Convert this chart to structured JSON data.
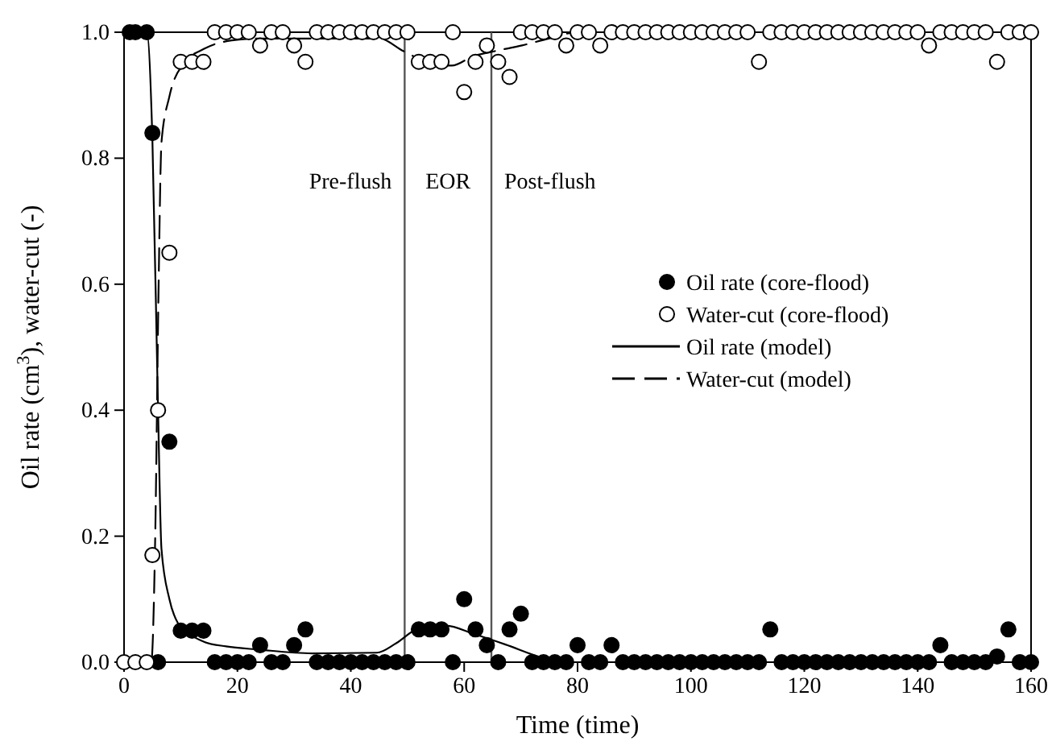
{
  "chart_data": {
    "type": "scatter",
    "xlabel": "Time (time)",
    "ylabel": "Oil rate (cm$^{3}$), water-cut (-)",
    "xlim": [
      0,
      160
    ],
    "xticks": [
      0,
      20,
      40,
      60,
      80,
      100,
      120,
      140,
      160
    ],
    "ylim": [
      0,
      1
    ],
    "yticks": [
      {
        "value": 0,
        "label": "0.0"
      },
      {
        "value": 0.2,
        "label": "0.2"
      },
      {
        "value": 0.4,
        "label": "0.4"
      },
      {
        "value": 0.6,
        "label": "0.6"
      },
      {
        "value": 0.8,
        "label": "0.8"
      },
      {
        "value": 1,
        "label": "1.0"
      }
    ],
    "grid": false,
    "legend": "right",
    "ref_lines": [
      {
        "axis": "x",
        "value": 49.5,
        "color": "#555555"
      },
      {
        "axis": "x",
        "value": 64.8,
        "color": "#555555"
      }
    ],
    "annotations": [
      "Pre-flush",
      "EOR",
      "Post-flush"
    ],
    "series": [
      {
        "name": "Oil rate (core-flood)",
        "marker": "circle",
        "color": "#000000",
        "x": [
          1,
          2,
          4,
          5,
          6,
          8,
          10,
          12,
          14,
          16,
          18,
          20,
          22,
          24,
          26,
          28,
          30,
          32,
          34,
          36,
          38,
          40,
          42,
          44,
          46,
          48,
          50,
          52,
          54,
          56,
          58,
          60,
          62,
          64,
          66,
          68,
          70,
          72,
          74,
          76,
          78,
          80,
          82,
          84,
          86,
          88,
          90,
          92,
          94,
          96,
          98,
          100,
          102,
          104,
          106,
          108,
          110,
          112,
          114,
          116,
          118,
          120,
          122,
          124,
          126,
          128,
          130,
          132,
          134,
          136,
          138,
          140,
          142,
          144,
          146,
          148,
          150,
          152,
          154,
          156,
          158,
          160
        ],
        "values": [
          1,
          1,
          1,
          0.84,
          0,
          0.35,
          0.05,
          0.05,
          0.05,
          0,
          0,
          0,
          0,
          0.027,
          0,
          0,
          0.027,
          0.052,
          0,
          0,
          0,
          0,
          0,
          0,
          0,
          0,
          0,
          0.052,
          0.052,
          0.052,
          0,
          0.1,
          0.052,
          0.027,
          0,
          0.052,
          0.077,
          0,
          0,
          0,
          0,
          0.027,
          0,
          0,
          0.027,
          0,
          0,
          0,
          0,
          0,
          0,
          0,
          0,
          0,
          0,
          0,
          0,
          0,
          0.052,
          0,
          0,
          0,
          0,
          0,
          0,
          0,
          0,
          0,
          0,
          0,
          0,
          0,
          0,
          0.027,
          0,
          0,
          0,
          0,
          0.009,
          0.052,
          0,
          0
        ]
      },
      {
        "name": "Water-cut (core-flood)",
        "marker": "circle",
        "color": "#ffffff",
        "x": [
          0,
          2,
          4,
          5,
          6,
          8,
          10,
          12,
          14,
          16,
          18,
          20,
          22,
          24,
          26,
          28,
          30,
          32,
          34,
          36,
          38,
          40,
          42,
          44,
          46,
          48,
          50,
          52,
          54,
          56,
          58,
          60,
          62,
          64,
          66,
          68,
          70,
          72,
          74,
          76,
          78,
          80,
          82,
          84,
          86,
          88,
          90,
          92,
          94,
          96,
          98,
          100,
          102,
          104,
          106,
          108,
          110,
          112,
          114,
          116,
          118,
          120,
          122,
          124,
          126,
          128,
          130,
          132,
          134,
          136,
          138,
          140,
          142,
          144,
          146,
          148,
          150,
          152,
          154,
          156,
          158,
          160
        ],
        "values": [
          0,
          0,
          0,
          0.17,
          0.4,
          0.65,
          0.953,
          0.953,
          0.953,
          1,
          1,
          1,
          1,
          0.979,
          1,
          1,
          0.979,
          0.953,
          1,
          1,
          1,
          1,
          1,
          1,
          1,
          1,
          1,
          0.953,
          0.953,
          0.953,
          1,
          0.905,
          0.953,
          0.979,
          0.953,
          0.929,
          1,
          1,
          1,
          1,
          0.979,
          1,
          1,
          0.979,
          1,
          1,
          1,
          1,
          1,
          1,
          1,
          1,
          1,
          1,
          1,
          1,
          1,
          0.953,
          1,
          1,
          1,
          1,
          1,
          1,
          1,
          1,
          1,
          1,
          1,
          1,
          1,
          1,
          0.979,
          1,
          1,
          1,
          1,
          1,
          0.953,
          1,
          1,
          1
        ]
      },
      {
        "name": "Oil rate (model)",
        "type": "line",
        "marker": "none",
        "line_style": "solid",
        "color": "#000000",
        "x": [
          0,
          4,
          5,
          6,
          6.6,
          8,
          9.5,
          12,
          14.2,
          18,
          23.7,
          33.2,
          44.6,
          48,
          52.1,
          56.8,
          61.6,
          67.3,
          73.9,
          78.4,
          160
        ],
        "values": [
          1,
          1,
          0.83,
          0.4,
          0.18,
          0.1,
          0.062,
          0.042,
          0.032,
          0.025,
          0.02,
          0.014,
          0.015,
          0.03,
          0.054,
          0.058,
          0.045,
          0.028,
          0.007,
          0,
          0
        ]
      },
      {
        "name": "Water-cut (model)",
        "type": "line",
        "marker": "none",
        "line_style": "dashed",
        "color": "#000000",
        "x": [
          0,
          4.8,
          5.5,
          6.1,
          6.6,
          8,
          10.4,
          14.2,
          19,
          23.7,
          35,
          45,
          49.3,
          54,
          57.8,
          61.6,
          65.4,
          70.2,
          74.9,
          80,
          160
        ],
        "values": [
          0,
          0,
          0.2,
          0.6,
          0.825,
          0.898,
          0.949,
          0.974,
          0.987,
          0.99,
          0.99,
          0.99,
          0.97,
          0.951,
          0.947,
          0.962,
          0.97,
          0.979,
          0.99,
          1,
          1
        ]
      }
    ]
  }
}
